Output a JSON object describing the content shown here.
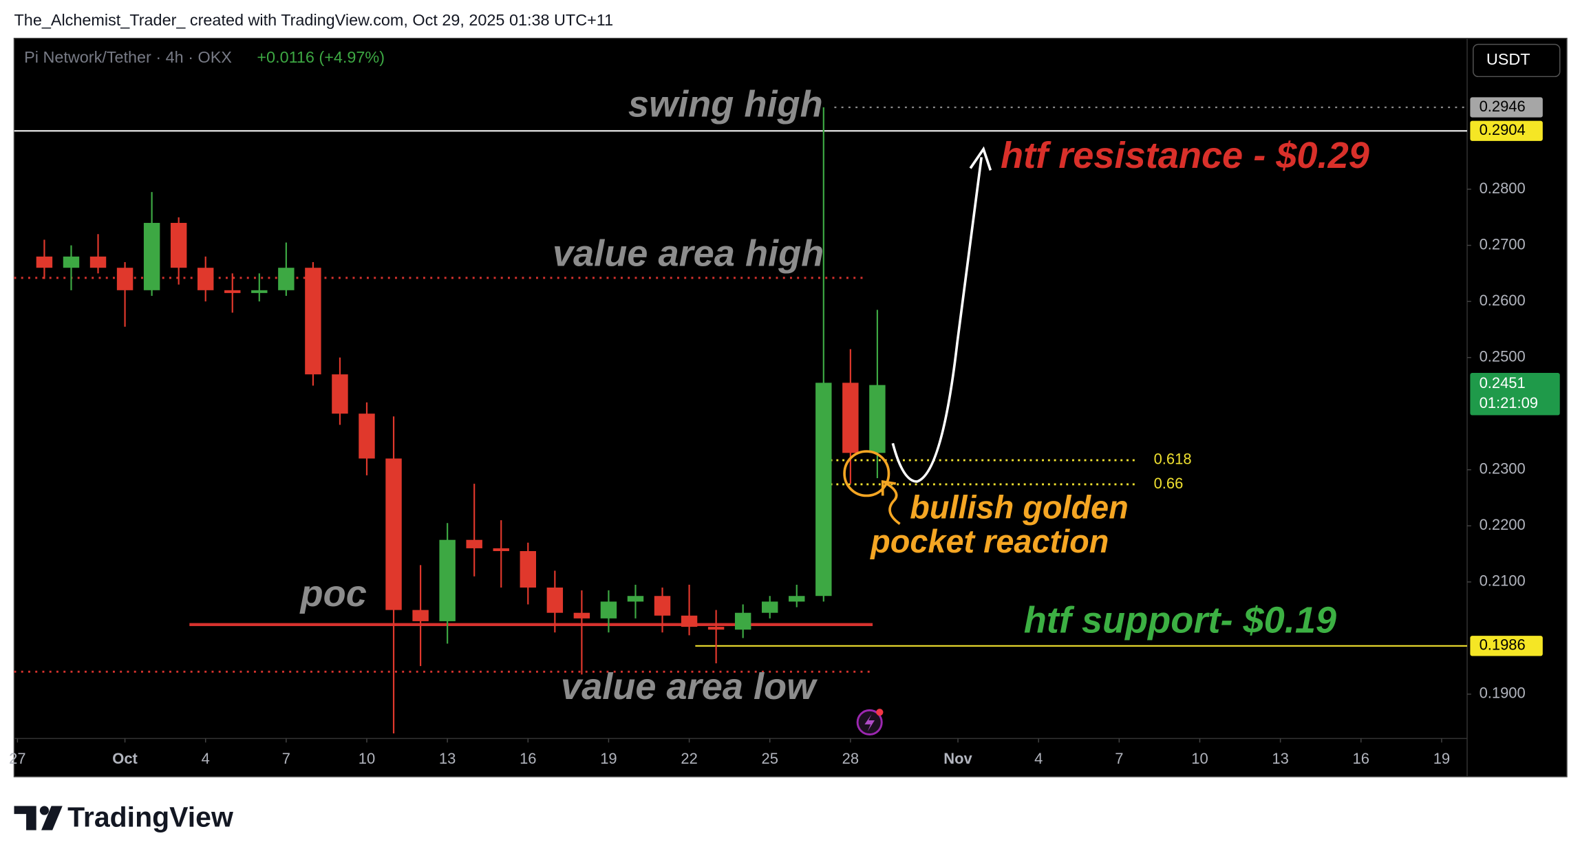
{
  "header": {
    "credit": "The_Alchemist_Trader_ created with TradingView.com, Oct 29, 2025 01:38 UTC+11"
  },
  "footer": {
    "brand": "TradingView"
  },
  "chart_data": {
    "type": "candlestick",
    "title": "Pi Network/Tether · 4h · OKX",
    "change": "+0.0116 (+4.97%)",
    "currency": "USDT",
    "up_color": "#3da843",
    "down_color": "#e0382c",
    "x": [
      -2,
      -1,
      0,
      1,
      2,
      3,
      4,
      5,
      6,
      7,
      8,
      9,
      10,
      11,
      12,
      13,
      14,
      15,
      16,
      17,
      18,
      19,
      20,
      21,
      22,
      23,
      24,
      25,
      26,
      27,
      28,
      29
    ],
    "open": [
      0.268,
      0.266,
      0.268,
      0.266,
      0.262,
      0.274,
      0.266,
      0.262,
      0.2615,
      0.262,
      0.266,
      0.247,
      0.24,
      0.232,
      0.205,
      0.203,
      0.2175,
      0.216,
      0.2155,
      0.209,
      0.2045,
      0.2035,
      0.2065,
      0.2075,
      0.204,
      0.202,
      0.2015,
      0.2045,
      0.2065,
      0.2075,
      0.2455,
      0.233
    ],
    "high": [
      0.271,
      0.27,
      0.272,
      0.267,
      0.2795,
      0.275,
      0.268,
      0.265,
      0.265,
      0.2705,
      0.267,
      0.25,
      0.242,
      0.2395,
      0.213,
      0.2205,
      0.2275,
      0.221,
      0.217,
      0.212,
      0.2085,
      0.2085,
      0.2095,
      0.209,
      0.2095,
      0.205,
      0.206,
      0.2075,
      0.2095,
      0.2946,
      0.2515,
      0.2585
    ],
    "low": [
      0.264,
      0.262,
      0.265,
      0.2555,
      0.261,
      0.263,
      0.26,
      0.258,
      0.26,
      0.261,
      0.245,
      0.238,
      0.229,
      0.183,
      0.195,
      0.199,
      0.211,
      0.209,
      0.206,
      0.201,
      0.1935,
      0.201,
      0.2035,
      0.201,
      0.2005,
      0.1955,
      0.2,
      0.2035,
      0.2055,
      0.2065,
      0.2275,
      0.2285
    ],
    "close": [
      0.266,
      0.268,
      0.266,
      0.262,
      0.274,
      0.266,
      0.262,
      0.2615,
      0.262,
      0.266,
      0.247,
      0.24,
      0.232,
      0.205,
      0.203,
      0.2175,
      0.216,
      0.2155,
      0.209,
      0.2045,
      0.2035,
      0.2065,
      0.2075,
      0.204,
      0.202,
      0.2015,
      0.2045,
      0.2065,
      0.2075,
      0.2455,
      0.233,
      0.2451
    ],
    "xlim": [
      -3.125,
      50.95
    ],
    "xticks": [
      {
        "value": -3,
        "label": "27"
      },
      {
        "value": 1,
        "label": "Oct"
      },
      4,
      7,
      10,
      13,
      16,
      19,
      22,
      25,
      28,
      {
        "value": 32,
        "label": "Nov"
      },
      {
        "value": 35,
        "label": "4"
      },
      {
        "value": 38,
        "label": "7"
      },
      {
        "value": 41,
        "label": "10"
      },
      {
        "value": 44,
        "label": "13"
      },
      {
        "value": 47,
        "label": "16"
      },
      {
        "value": 50,
        "label": "19"
      }
    ],
    "ylim": [
      0.1821,
      0.3069
    ],
    "yticks": [
      {
        "value": 0.28,
        "label": "0.2800"
      },
      {
        "value": 0.27,
        "label": "0.2700"
      },
      {
        "value": 0.26,
        "label": "0.2600"
      },
      {
        "value": 0.25,
        "label": "0.2500"
      },
      {
        "value": 0.23,
        "label": "0.2300"
      },
      {
        "value": 0.22,
        "label": "0.2200"
      },
      {
        "value": 0.21,
        "label": "0.2100"
      },
      {
        "value": 0.19,
        "label": "0.1900"
      }
    ],
    "last_price": 0.2451,
    "countdown": "01:21:09",
    "annotations": [
      {
        "text": "swing high",
        "value": 0.2946
      },
      {
        "text": "htf resistance - $0.29",
        "value": 0.2904
      },
      {
        "text": "value area high",
        "value": 0.2642
      },
      {
        "text": "poc",
        "value": 0.2024
      },
      {
        "text": "value area low",
        "value": 0.194
      },
      {
        "text": "htf support- $0.19",
        "value": 0.1986
      }
    ],
    "golden_pocket": {
      "text": [
        "bullish golden",
        "pocket reaction"
      ],
      "levels": [
        {
          "ratio": 0.618,
          "price": 0.2317
        },
        {
          "ratio": 0.66,
          "price": 0.2274
        }
      ]
    }
  }
}
